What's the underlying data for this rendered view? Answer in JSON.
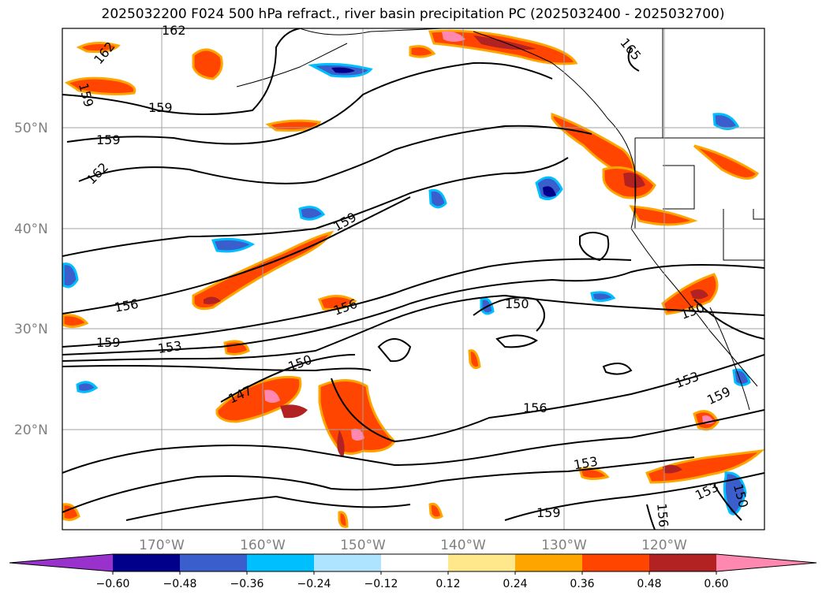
{
  "title": "2025032200 F024 500 hPa refract., river basin precipitation PC (2025032400 - 2025032700)",
  "map": {
    "lat_labels": [
      "50°N",
      "40°N",
      "30°N",
      "20°N"
    ],
    "lon_labels": [
      "170°W",
      "160°W",
      "150°W",
      "140°W",
      "130°W",
      "120°W"
    ],
    "contour_labels": [
      "162",
      "162",
      "159",
      "159",
      "162",
      "165",
      "159",
      "159",
      "156",
      "156",
      "153",
      "159",
      "150",
      "150",
      "147",
      "150",
      "153",
      "159",
      "156",
      "153",
      "153",
      "150",
      "159",
      "156"
    ]
  },
  "colorbar": {
    "colors": [
      "#9932cc",
      "#00008b",
      "#3a5fcd",
      "#00bfff",
      "#aee4ff",
      "#ffffff",
      "#ffe88c",
      "#ffa500",
      "#ff4500",
      "#b22222",
      "#ff88b0"
    ],
    "tick_labels": [
      "−0.60",
      "−0.48",
      "−0.36",
      "−0.24",
      "−0.12",
      "0.12",
      "0.24",
      "0.36",
      "0.48",
      "0.60"
    ]
  }
}
